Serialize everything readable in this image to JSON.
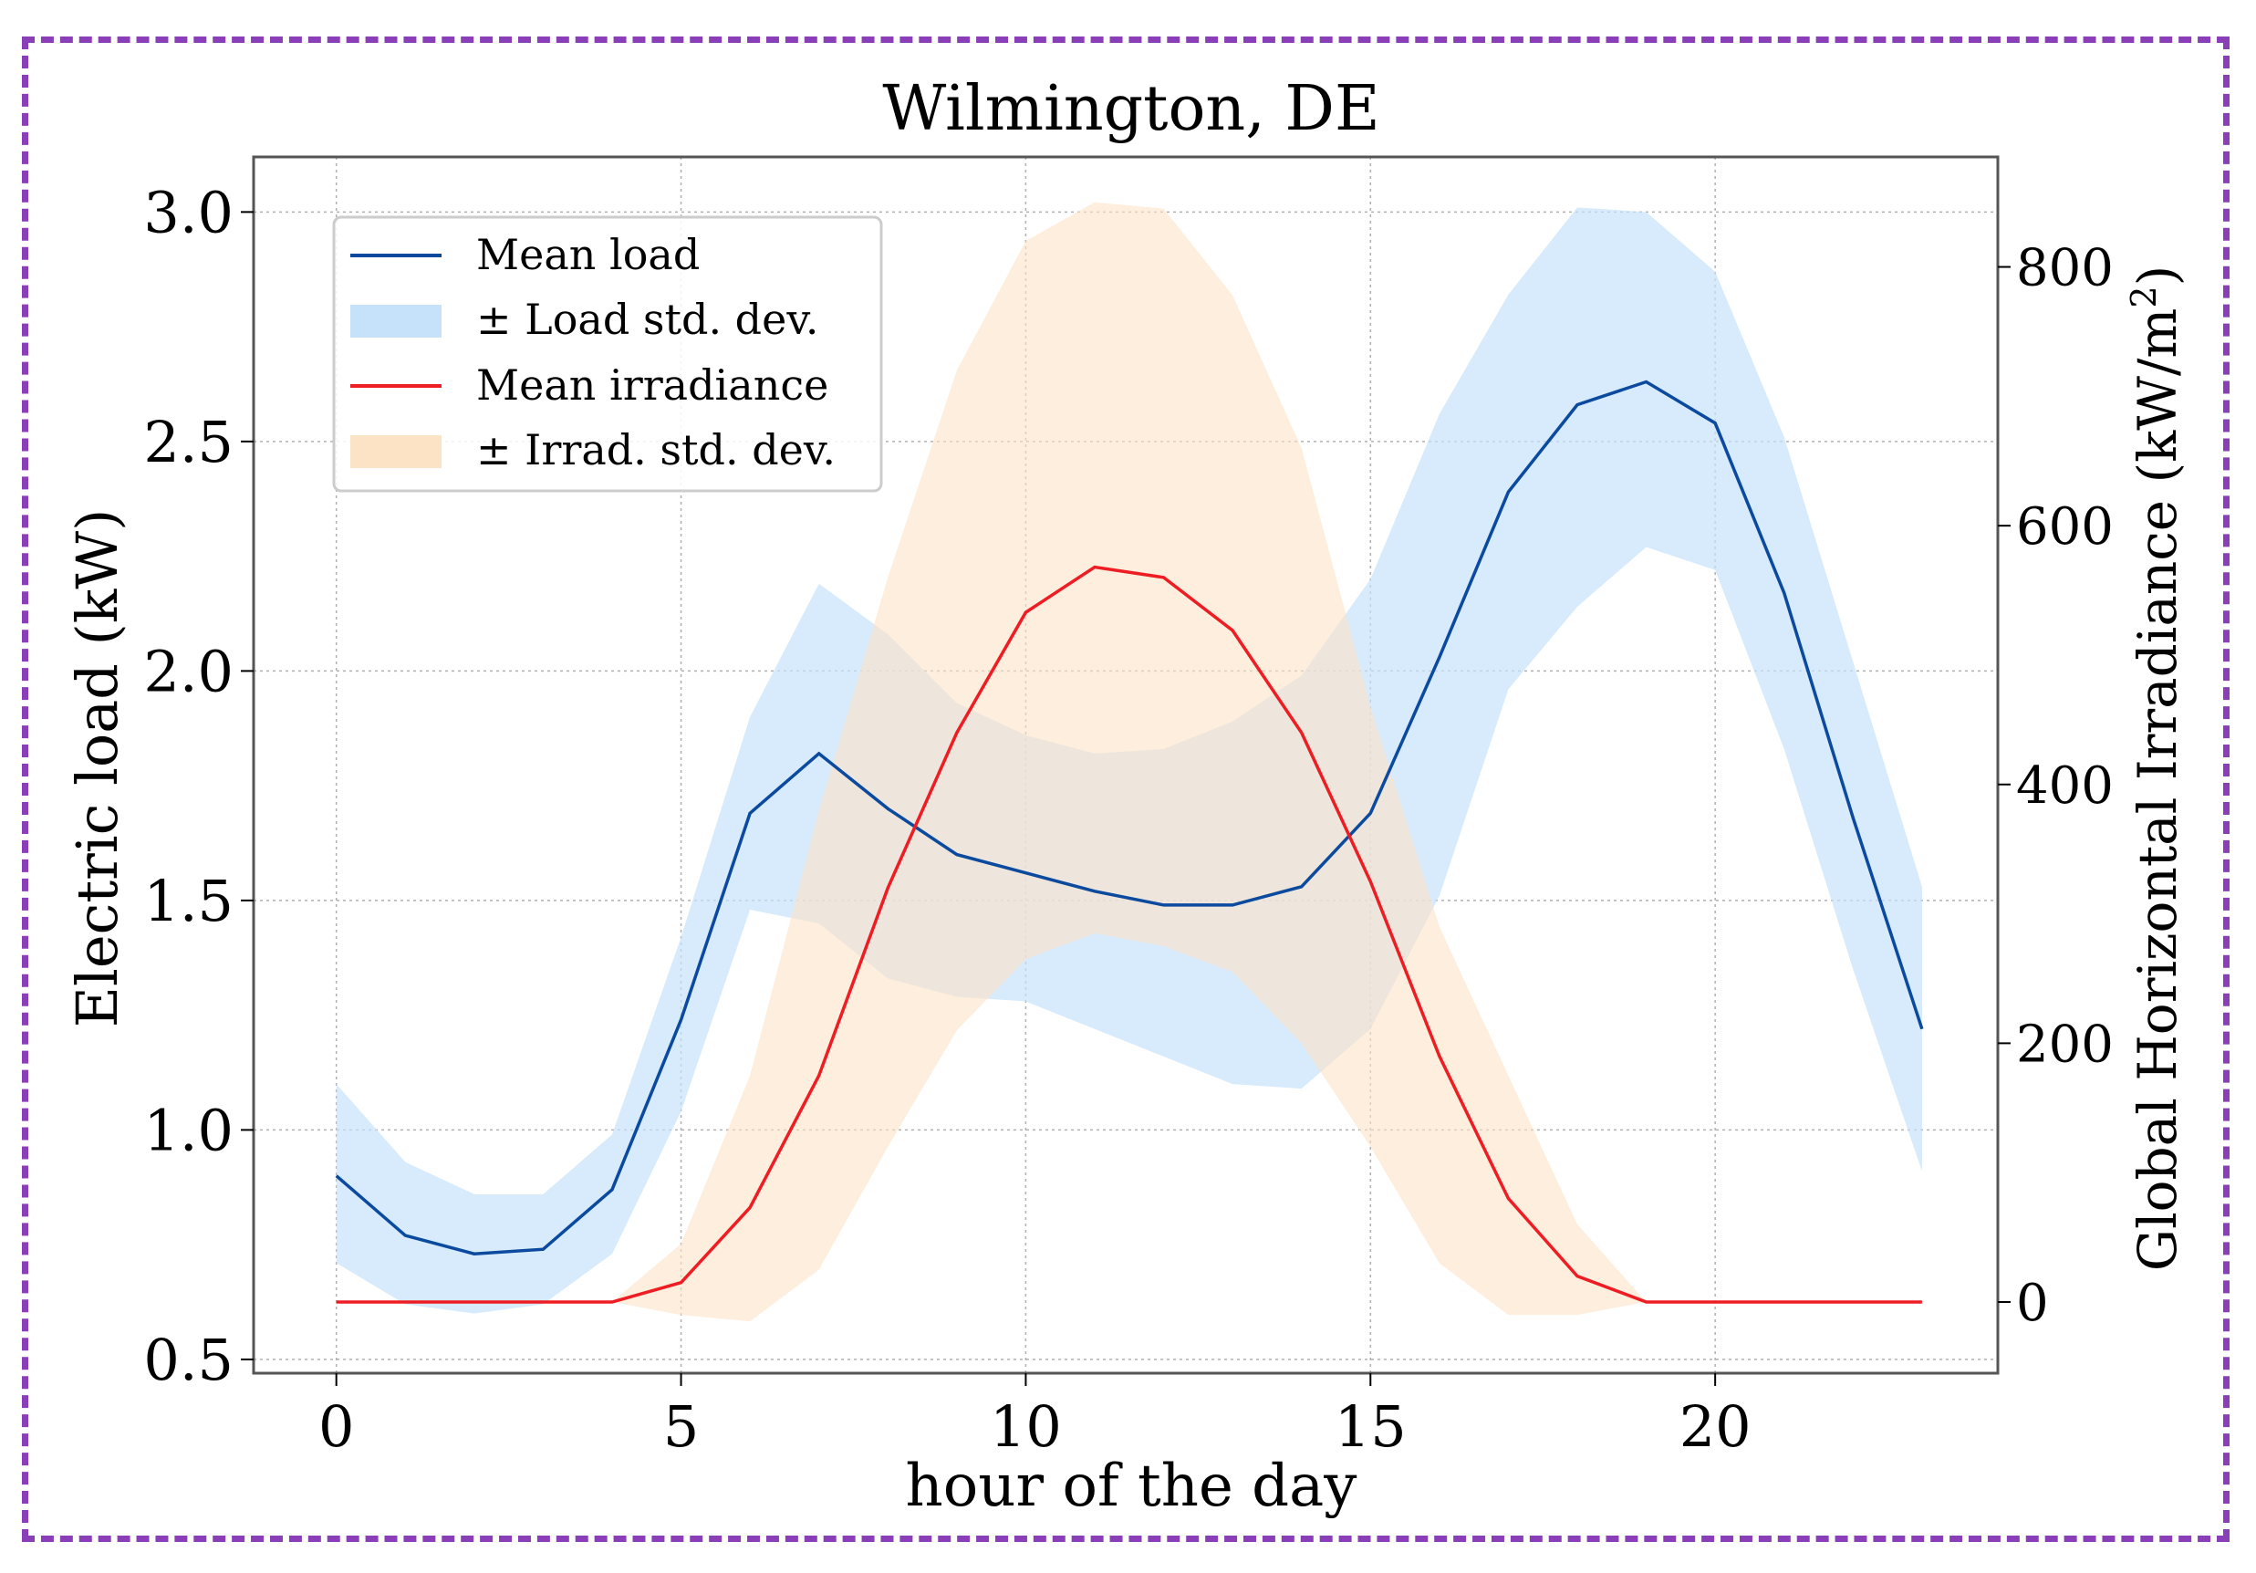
{
  "chart_data": {
    "type": "line",
    "title": "Wilmington, DE",
    "xlabel": "hour of the day",
    "ylabel": "Electric load (kW)",
    "ylabel2": "Global Horizontal Irradiance (kW/m",
    "ylabel2_sup": "2",
    "ylabel2_tail": ")",
    "xlim": [
      -1.2,
      24.1
    ],
    "ylim": [
      0.47,
      3.12
    ],
    "ylim2": [
      -55,
      885
    ],
    "xticks": [
      0,
      5,
      10,
      15,
      20
    ],
    "yticks": [
      "0.5",
      "1.0",
      "1.5",
      "2.0",
      "2.5",
      "3.0"
    ],
    "yticks2": [
      0,
      200,
      400,
      600,
      800
    ],
    "grid": true,
    "legend_position": "top-left",
    "x": [
      0,
      1,
      2,
      3,
      4,
      5,
      6,
      7,
      8,
      9,
      10,
      11,
      12,
      13,
      14,
      15,
      16,
      17,
      18,
      19,
      20,
      21,
      22,
      23
    ],
    "load": {
      "label": "Mean load",
      "color": "#0b4a9e",
      "mean": [
        0.9,
        0.77,
        0.73,
        0.74,
        0.87,
        1.24,
        1.69,
        1.82,
        1.7,
        1.6,
        1.56,
        1.52,
        1.49,
        1.49,
        1.53,
        1.69,
        2.03,
        2.39,
        2.58,
        2.63,
        2.54,
        2.17,
        1.68,
        1.22
      ],
      "upper": [
        1.1,
        0.93,
        0.86,
        0.86,
        0.99,
        1.42,
        1.9,
        2.19,
        2.08,
        1.93,
        1.86,
        1.82,
        1.83,
        1.89,
        1.99,
        2.2,
        2.56,
        2.82,
        3.01,
        3.0,
        2.87,
        2.51,
        2.02,
        1.53
      ],
      "lower": [
        0.71,
        0.62,
        0.6,
        0.62,
        0.73,
        1.04,
        1.48,
        1.45,
        1.33,
        1.29,
        1.28,
        1.22,
        1.16,
        1.1,
        1.09,
        1.22,
        1.51,
        1.96,
        2.14,
        2.27,
        2.22,
        1.83,
        1.35,
        0.91
      ],
      "band_label": "± Load std. dev.",
      "band_color": "#c6e2fb"
    },
    "irradiance": {
      "label": "Mean irradiance",
      "color": "#ee1d23",
      "mean": [
        0,
        0,
        0,
        0,
        0,
        15,
        73,
        175,
        320,
        440,
        533,
        568,
        560,
        519,
        440,
        325,
        190,
        80,
        20,
        0,
        0,
        0,
        0,
        0
      ],
      "upper": [
        0,
        0,
        0,
        0,
        0,
        45,
        175,
        380,
        560,
        720,
        820,
        850,
        845,
        778,
        660,
        460,
        290,
        175,
        60,
        0,
        0,
        0,
        0,
        0
      ],
      "lower": [
        0,
        0,
        0,
        0,
        0,
        -10,
        -15,
        25,
        120,
        210,
        265,
        285,
        275,
        255,
        200,
        120,
        30,
        -10,
        -10,
        0,
        0,
        0,
        0,
        0
      ],
      "band_label": "± Irrad. std. dev.",
      "band_color": "#fde3c6"
    }
  }
}
